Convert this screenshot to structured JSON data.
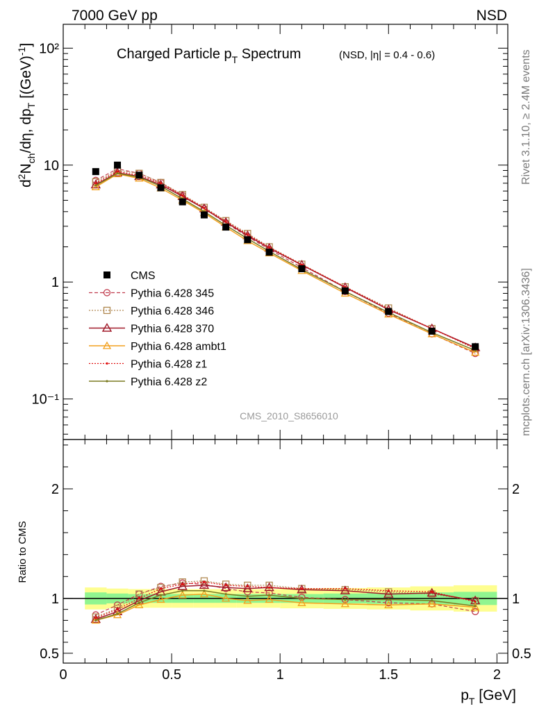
{
  "header": {
    "left": "7000 GeV pp",
    "right": "NSD",
    "analysis": "CMS_2010_S8656010",
    "side_top": "Rivet 3.1.10, ≥ 2.4M events",
    "side_bottom": "mcplots.cern.ch [arXiv:1306.3436]"
  },
  "title": {
    "main_pre": "Charged Particle p",
    "main_sub": "T",
    "main_post": " Spectrum",
    "qualifier": "(NSD, |η| = 0.4 - 0.6)"
  },
  "axes": {
    "xlabel": "p",
    "xlabel_sub": "T",
    "xlabel_unit": " [GeV]",
    "ylabel": "d²N_ch/dη, dp_T [(GeV)⁻¹]",
    "ratio_ylabel": "Ratio to CMS"
  },
  "colors": {
    "CMS": "#000000",
    "p345": "#c0394a",
    "p346": "#b08850",
    "p370": "#a01828",
    "ambt1": "#f2a01e",
    "z1": "#e01010",
    "z2": "#7a7a20",
    "band_inner": "#90f590",
    "band_outer": "#fefe90"
  },
  "chart_data": [
    {
      "type": "scatter",
      "name": "main",
      "yscale": "log",
      "xlim": [
        0,
        2.05
      ],
      "ylim": [
        0.045,
        160
      ],
      "xticks": [
        "0",
        "0.5",
        "1",
        "1.5",
        "2"
      ],
      "yticks": [
        "10⁻¹",
        "1",
        "10",
        "10²"
      ],
      "x": [
        0.15,
        0.25,
        0.35,
        0.45,
        0.55,
        0.65,
        0.75,
        0.85,
        0.95,
        1.1,
        1.3,
        1.5,
        1.7,
        1.9
      ],
      "series": [
        {
          "name": "CMS",
          "values": [
            8.8,
            10.0,
            8.2,
            6.4,
            4.85,
            3.75,
            2.95,
            2.3,
            1.8,
            1.3,
            0.84,
            0.56,
            0.38,
            0.28
          ]
        },
        {
          "name": "Pythia 6.428 345",
          "values": [
            7.4,
            9.3,
            8.5,
            7.1,
            5.5,
            4.25,
            3.2,
            2.45,
            1.9,
            1.33,
            0.83,
            0.54,
            0.36,
            0.245
          ]
        },
        {
          "name": "Pythia 6.428 346",
          "values": [
            7.2,
            9.0,
            8.5,
            7.1,
            5.6,
            4.35,
            3.35,
            2.6,
            2.0,
            1.42,
            0.91,
            0.6,
            0.4,
            0.27
          ]
        },
        {
          "name": "Pythia 6.428 370",
          "values": [
            6.8,
            8.6,
            8.0,
            6.8,
            5.4,
            4.25,
            3.25,
            2.5,
            1.95,
            1.4,
            0.9,
            0.58,
            0.4,
            0.275
          ]
        },
        {
          "name": "Pythia 6.428 ambt1",
          "values": [
            6.5,
            8.4,
            7.7,
            6.35,
            5.0,
            3.9,
            2.95,
            2.25,
            1.77,
            1.25,
            0.8,
            0.53,
            0.36,
            0.25
          ]
        },
        {
          "name": "Pythia 6.428 z1",
          "values": [
            7.0,
            8.8,
            8.2,
            7.0,
            5.5,
            4.3,
            3.3,
            2.55,
            1.98,
            1.41,
            0.91,
            0.59,
            0.4,
            0.27
          ]
        },
        {
          "name": "Pythia 6.428 z2",
          "values": [
            6.7,
            8.5,
            7.9,
            6.6,
            5.15,
            4.0,
            3.05,
            2.35,
            1.83,
            1.28,
            0.83,
            0.55,
            0.37,
            0.26
          ]
        }
      ]
    },
    {
      "type": "line",
      "name": "ratio",
      "xlim": [
        0,
        2.05
      ],
      "ylim": [
        0.41,
        2.45
      ],
      "xticks": [
        "0",
        "0.5",
        "1",
        "1.5",
        "2"
      ],
      "yticks": [
        "0.5",
        "1",
        "2"
      ],
      "x": [
        0.15,
        0.25,
        0.35,
        0.45,
        0.55,
        0.65,
        0.75,
        0.85,
        0.95,
        1.1,
        1.3,
        1.5,
        1.7,
        1.9
      ],
      "band_edges": [
        0.1,
        0.2,
        0.3,
        0.4,
        0.5,
        0.6,
        0.7,
        0.8,
        0.9,
        1.0,
        1.2,
        1.4,
        1.6,
        1.8,
        2.0
      ],
      "band_inner": [
        0.055,
        0.045,
        0.04,
        0.04,
        0.04,
        0.04,
        0.04,
        0.04,
        0.04,
        0.04,
        0.045,
        0.05,
        0.055,
        0.06
      ],
      "band_outer": [
        0.1,
        0.09,
        0.085,
        0.085,
        0.085,
        0.085,
        0.085,
        0.085,
        0.085,
        0.09,
        0.095,
        0.1,
        0.11,
        0.12
      ],
      "series": [
        {
          "name": "Pythia 6.428 345",
          "values": [
            0.85,
            0.94,
            1.04,
            1.11,
            1.14,
            1.13,
            1.09,
            1.06,
            1.05,
            1.01,
            0.99,
            0.96,
            0.95,
            0.88
          ]
        },
        {
          "name": "Pythia 6.428 346",
          "values": [
            0.83,
            0.91,
            1.04,
            1.1,
            1.15,
            1.16,
            1.13,
            1.12,
            1.12,
            1.09,
            1.08,
            1.06,
            1.04,
            0.98
          ]
        },
        {
          "name": "Pythia 6.428 370",
          "values": [
            0.81,
            0.88,
            0.98,
            1.06,
            1.11,
            1.12,
            1.1,
            1.09,
            1.1,
            1.08,
            1.07,
            1.04,
            1.05,
            0.98
          ]
        },
        {
          "name": "Pythia 6.428 ambt1",
          "values": [
            0.8,
            0.85,
            0.94,
            0.99,
            1.03,
            1.04,
            1.0,
            0.98,
            0.99,
            0.96,
            0.95,
            0.94,
            0.95,
            0.92
          ]
        },
        {
          "name": "Pythia 6.428 z1",
          "values": [
            0.82,
            0.9,
            1.0,
            1.09,
            1.13,
            1.15,
            1.12,
            1.11,
            1.1,
            1.09,
            1.09,
            1.07,
            1.06,
            0.97
          ]
        },
        {
          "name": "Pythia 6.428 z2",
          "values": [
            0.8,
            0.86,
            0.96,
            1.03,
            1.07,
            1.07,
            1.04,
            1.02,
            1.03,
            1.0,
            0.99,
            0.99,
            0.98,
            0.93
          ]
        }
      ]
    }
  ],
  "legend": [
    {
      "name": "CMS",
      "key": "CMS",
      "style": "cms"
    },
    {
      "name": "Pythia 6.428 345",
      "key": "p345",
      "style": "circle-dashed"
    },
    {
      "name": "Pythia 6.428 346",
      "key": "p346",
      "style": "square-dotted"
    },
    {
      "name": "Pythia 6.428 370",
      "key": "p370",
      "style": "triangle-solid"
    },
    {
      "name": "Pythia 6.428 ambt1",
      "key": "ambt1",
      "style": "triangle-solid-small"
    },
    {
      "name": "Pythia 6.428 z1",
      "key": "z1",
      "style": "dot-dotted"
    },
    {
      "name": "Pythia 6.428 z2",
      "key": "z2",
      "style": "dot-solid"
    }
  ]
}
